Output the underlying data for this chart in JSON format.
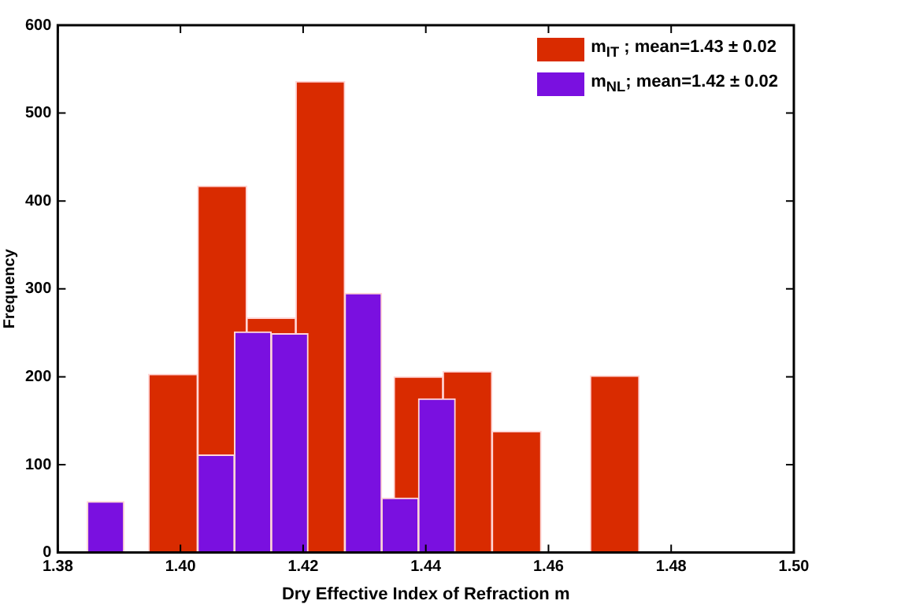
{
  "chart_data": {
    "type": "histogram",
    "xlabel": "Dry Effective Index of Refraction m",
    "ylabel": "Frequency",
    "xlim": [
      1.38,
      1.5
    ],
    "xticks": [
      1.38,
      {
        "value": 1.4,
        "label": "1.40"
      },
      1.42,
      1.44,
      1.46,
      1.48,
      {
        "value": 1.5,
        "label": "1.50"
      }
    ],
    "ylim": [
      0,
      600
    ],
    "yticks": [
      0,
      100,
      200,
      300,
      400,
      500,
      600
    ],
    "grid": false,
    "legend": "top right",
    "bins": [
      1.3948,
      1.4028,
      1.4108,
      1.4188,
      1.4268,
      1.4348,
      1.4428,
      1.4508,
      1.4588,
      1.4668,
      1.4748
    ],
    "series": [
      {
        "name": "m$_{IT}$ ; mean=1.43 ± 0.02",
        "color": "#d92b00",
        "values": [
          203,
          417,
          267,
          536,
          null,
          200,
          206,
          138,
          0,
          201
        ]
      },
      {
        "name": "m$_{NL}$; mean=1.42 ± 0.02",
        "color": "#7a10e0",
        "bins": [
          1.3848,
          1.3908,
          1.3968,
          1.4028,
          1.4088,
          1.4148,
          1.4208,
          1.4268,
          1.4328,
          1.4388,
          1.4448
        ],
        "values": [
          58,
          0,
          0,
          111,
          251,
          249,
          0,
          295,
          62,
          175
        ]
      }
    ]
  }
}
